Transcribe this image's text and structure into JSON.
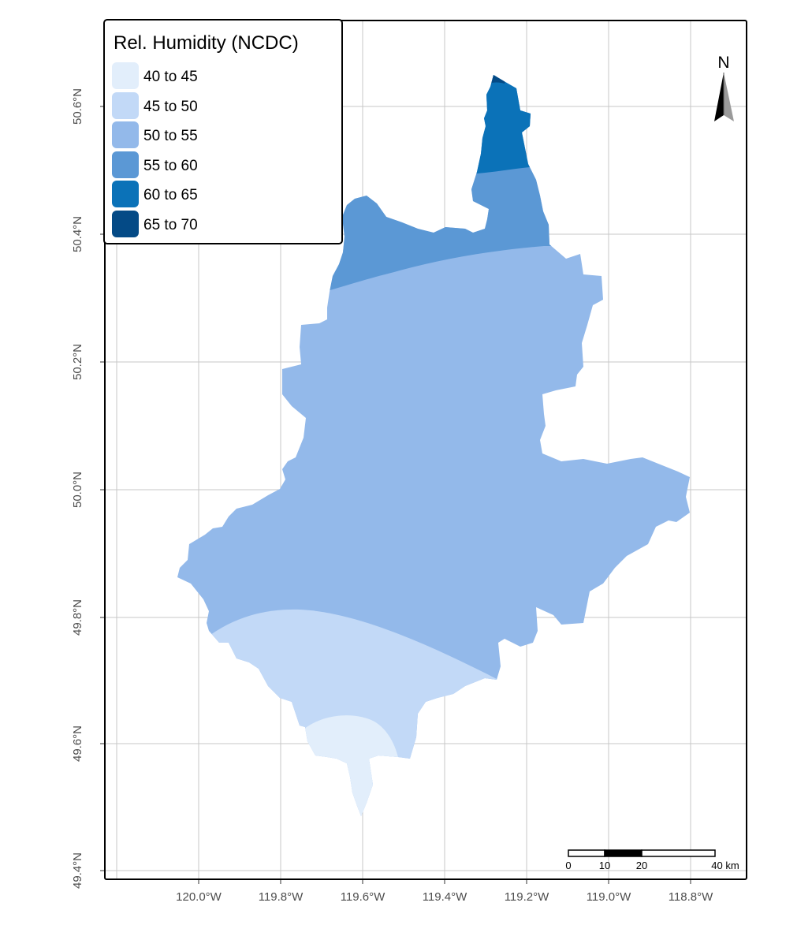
{
  "legend": {
    "title": "Rel. Humidity (NCDC)",
    "classes": [
      {
        "label": "40 to 45",
        "color": "#e2eefb"
      },
      {
        "label": "45 to 50",
        "color": "#c2d9f7"
      },
      {
        "label": "50 to 55",
        "color": "#93b9ea"
      },
      {
        "label": "55 to 60",
        "color": "#5b98d5"
      },
      {
        "label": "60 to 65",
        "color": "#0b72b8"
      },
      {
        "label": "65 to 70",
        "color": "#044a86"
      }
    ]
  },
  "axes": {
    "x_ticks": [
      "120.0°W",
      "119.8°W",
      "119.6°W",
      "119.4°W",
      "119.2°W",
      "119.0°W",
      "118.8°W"
    ],
    "y_ticks": [
      "50.6°N",
      "50.4°N",
      "50.2°N",
      "50.0°N",
      "49.8°N",
      "49.6°N",
      "49.4°N"
    ]
  },
  "north_arrow": {
    "label": "N",
    "icon": "north-arrow-icon"
  },
  "scale_bar": {
    "labels": [
      "0",
      "10",
      "20",
      "40 km"
    ]
  },
  "grid": true
}
